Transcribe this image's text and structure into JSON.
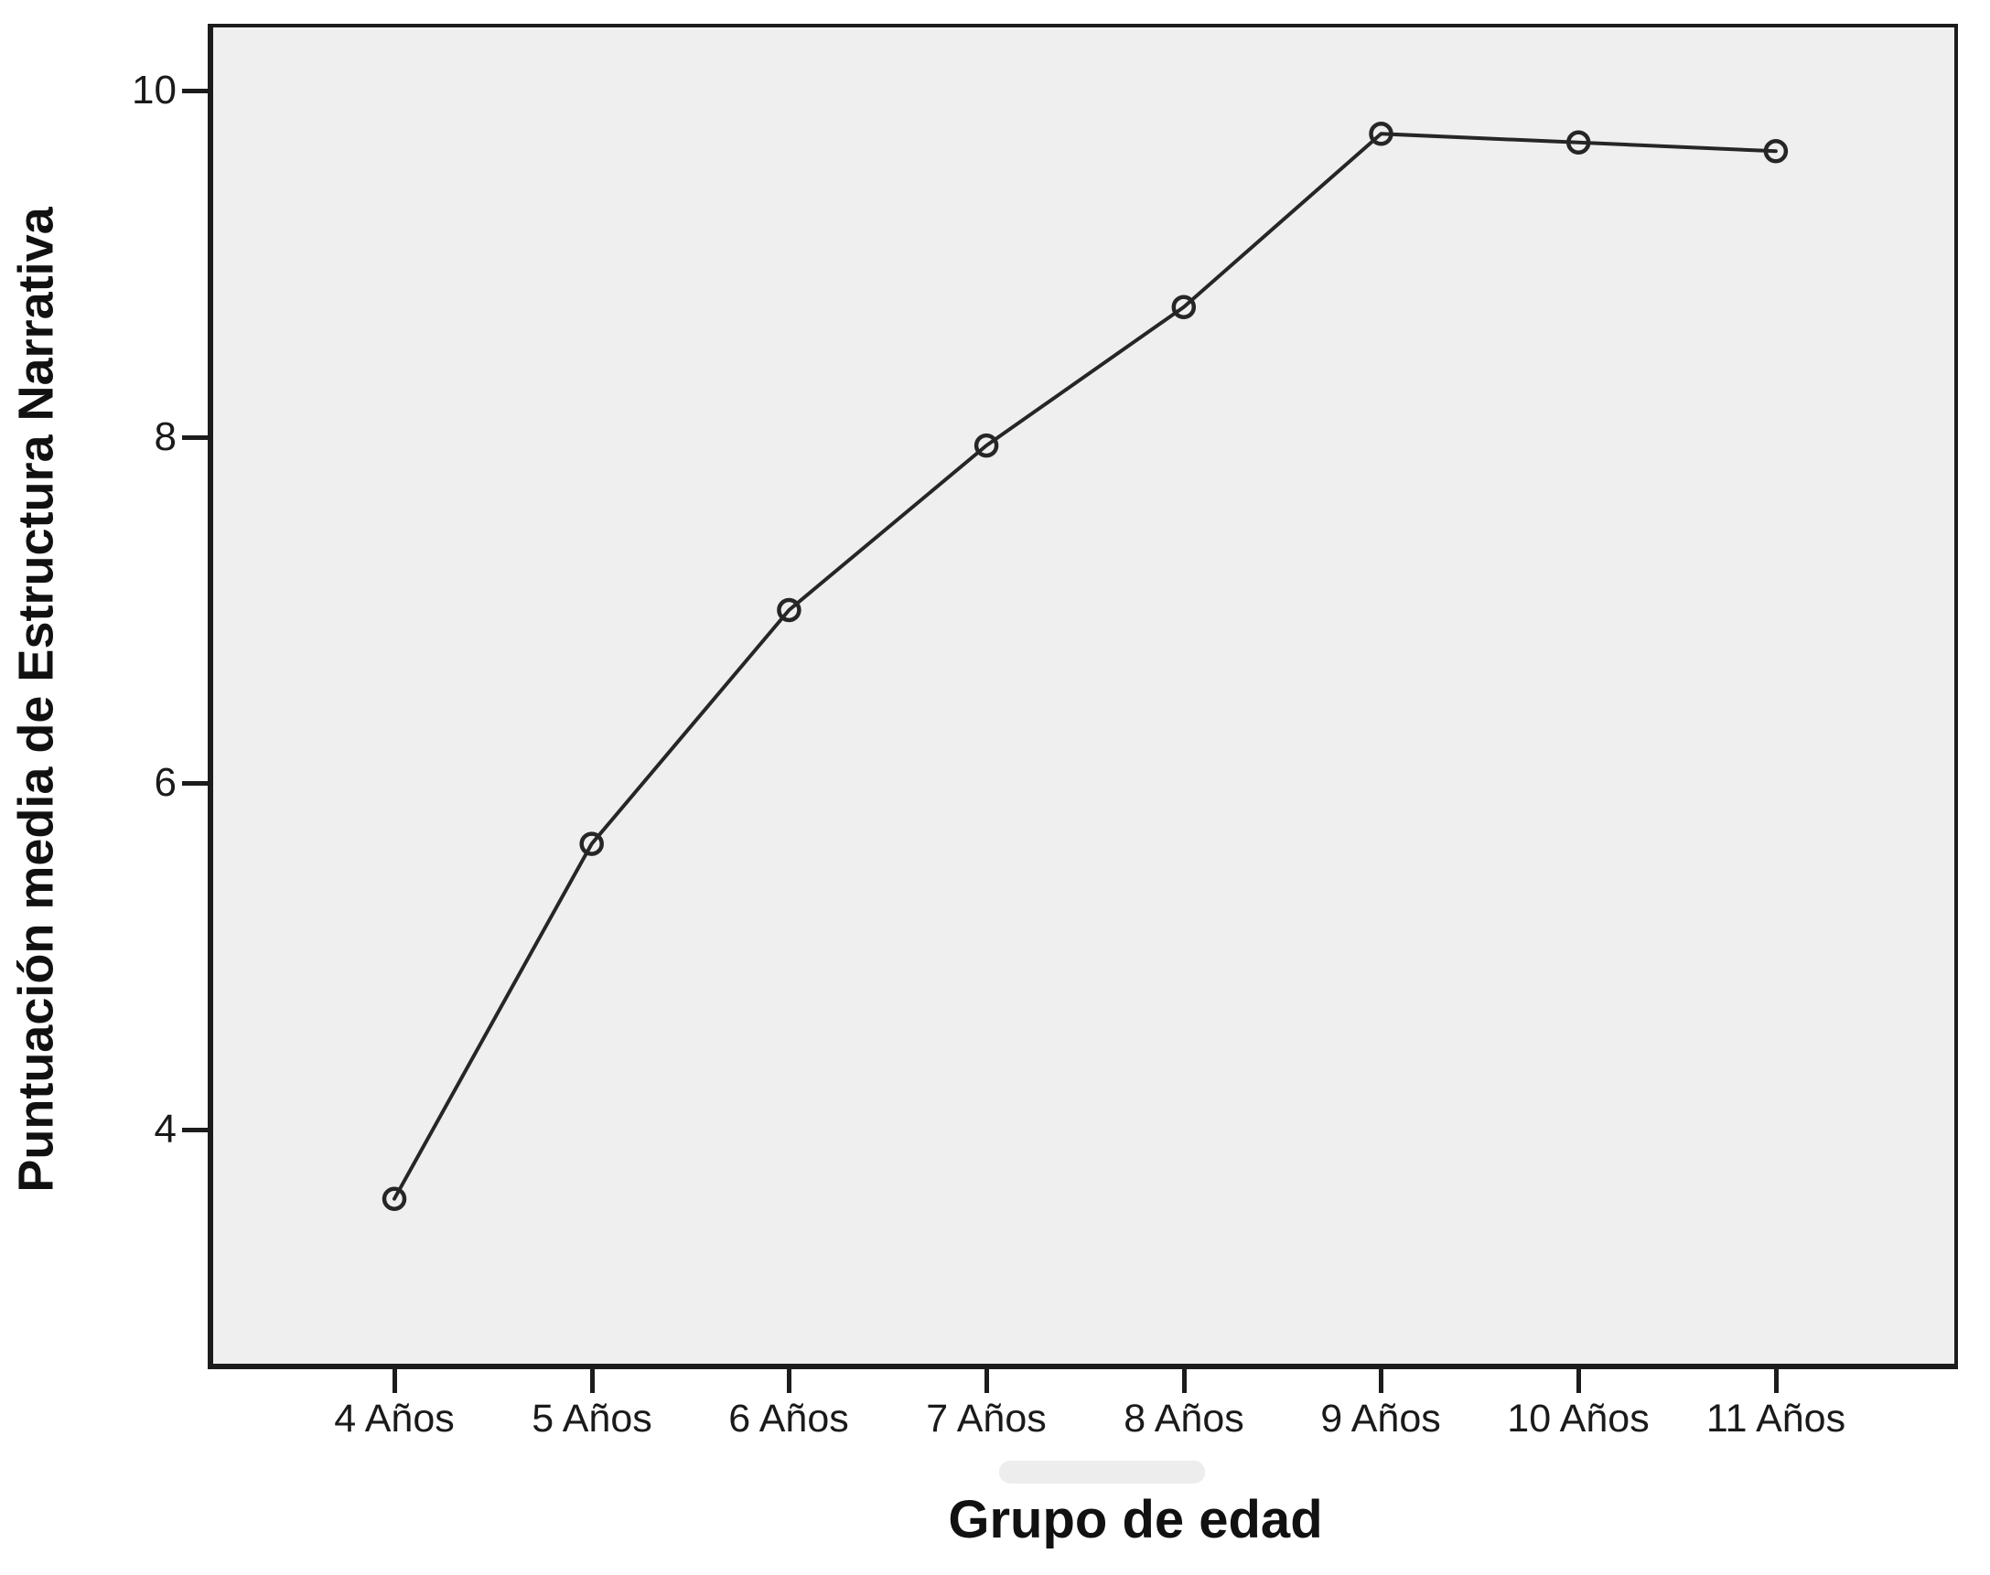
{
  "chart_data": {
    "type": "line",
    "title": "",
    "xlabel": "Grupo de edad",
    "ylabel": "Puntuación media de Estructura Narrativa",
    "categories": [
      "4 Años",
      "5 Años",
      "6 Años",
      "7 Años",
      "8 Años",
      "9 Años",
      "10 Años",
      "11 Años"
    ],
    "series": [
      {
        "name": "Puntuación media de Estructura Narrativa",
        "values": [
          3.6,
          5.65,
          7.0,
          7.95,
          8.75,
          9.75,
          9.7,
          9.65
        ]
      }
    ],
    "y_ticks": [
      10,
      8,
      6,
      4
    ],
    "y_tick_labels": [
      "10",
      "8",
      "6",
      "4"
    ],
    "ylim": [
      2.6,
      10.4
    ],
    "grid": false,
    "legend_visible": false,
    "marker_style": "open-circle",
    "line_color": "#262626",
    "plot_background": "#efefef",
    "page_background": "#ffffff"
  }
}
